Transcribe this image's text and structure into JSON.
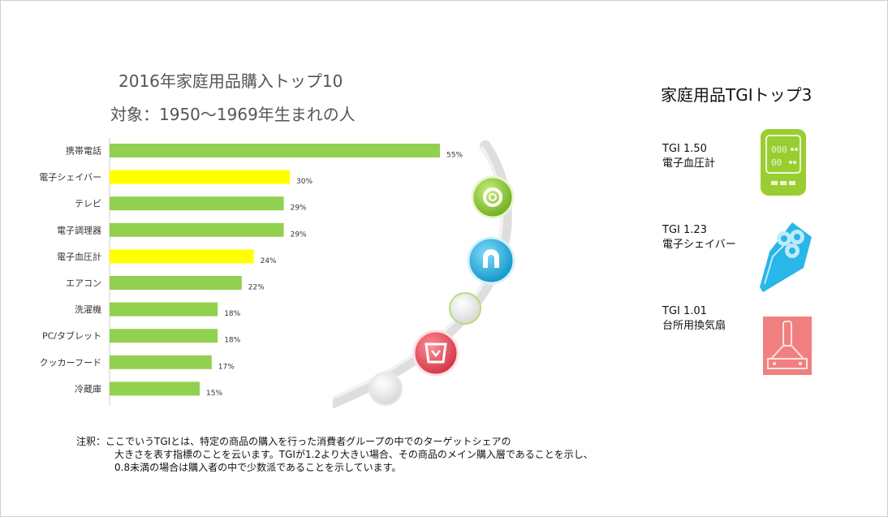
{
  "title_line1": "2016年家庭用品購入トップ10",
  "title_line2": "対象：1950～1969年生まれの人",
  "chart_data": {
    "type": "bar",
    "orientation": "horizontal",
    "categories": [
      "携帯電話",
      "電子シェイバー",
      "テレビ",
      "電子調理器",
      "電子血圧計",
      "エアコン",
      "洗濯機",
      "PC/タブレット",
      "クッカーフード",
      "冷蔵庫"
    ],
    "values": [
      55,
      30,
      29,
      29,
      24,
      22,
      18,
      18,
      17,
      15
    ],
    "value_labels": [
      "55%",
      "30%",
      "29%",
      "29%",
      "24%",
      "22%",
      "18%",
      "18%",
      "17%",
      "15%"
    ],
    "highlighted": [
      false,
      true,
      false,
      false,
      true,
      false,
      false,
      false,
      false,
      false
    ],
    "unit": "%",
    "colors": {
      "default": "#92d050",
      "highlight": "#ffff00"
    },
    "xlim": [
      0,
      60
    ]
  },
  "right_panel": {
    "title": "家庭用品TGIトップ3",
    "items": [
      {
        "tgi": "TGI 1.50",
        "name": "電子血圧計",
        "icon": "blood-pressure-monitor-icon",
        "color": "#9acd32"
      },
      {
        "tgi": "TGI 1.23",
        "name": "電子シェイバー",
        "icon": "electric-shaver-icon",
        "color": "#29b6e8"
      },
      {
        "tgi": "TGI 1.01",
        "name": "台所用換気扇",
        "icon": "range-hood-icon",
        "color": "#f08080"
      }
    ]
  },
  "decoration": {
    "icons": [
      "lifebuoy-icon",
      "magnet-icon",
      "bucket-icon"
    ],
    "colors": [
      "#8dc63f",
      "#29b6e8",
      "#e84c5a"
    ]
  },
  "note": {
    "prefix": "注釈：",
    "line1": "ここでいうTGIとは、特定の商品の購入を行った消費者グループの中でのターゲットシェアの",
    "line2": "大きさを表す指標のことを云います。TGIが1.2より大きい場合、その商品のメイン購入層であることを示し、",
    "line3": "0.8未満の場合は購入者の中で少数派であることを示しています。"
  }
}
